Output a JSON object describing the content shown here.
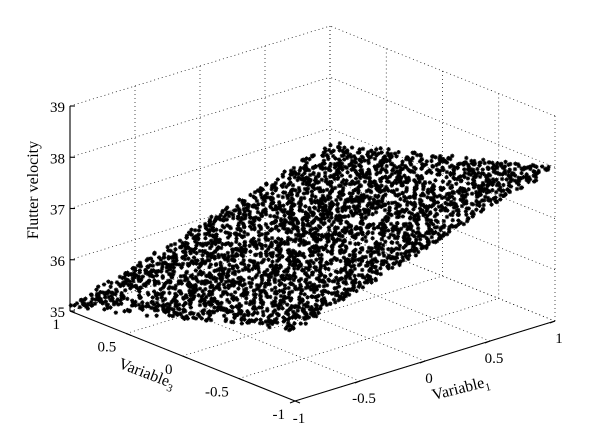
{
  "chart_data": {
    "type": "scatter",
    "title": "",
    "zlabel": "Flutter velocity",
    "xlabel": {
      "base": "Variable",
      "sub": "1"
    },
    "ylabel": {
      "base": "Variable",
      "sub": "3"
    },
    "xlim": [
      -1,
      1
    ],
    "ylim": [
      -1,
      1
    ],
    "zlim": [
      35,
      39
    ],
    "x_ticks": [
      "-1",
      "-0.5",
      "0",
      "0.5",
      "1"
    ],
    "y_ticks": [
      "-1",
      "-0.5",
      "0",
      "0.5",
      "1"
    ],
    "z_ticks": [
      "35",
      "36",
      "37",
      "38",
      "39"
    ],
    "grid": true,
    "marker": "*",
    "marker_color": "#000000",
    "series": [
      {
        "trend": "Flutter velocity increases approximately linearly with Variable1 and Variable3; dense band of samples",
        "corner_points": [
          {
            "x": -1,
            "y": 1,
            "z": 35.1
          },
          {
            "x": 1,
            "y": -1,
            "z": 38.0
          },
          {
            "x": -1,
            "y": -1,
            "z": 36.4
          },
          {
            "x": 1,
            "y": 1,
            "z": 36.7
          }
        ]
      }
    ]
  }
}
